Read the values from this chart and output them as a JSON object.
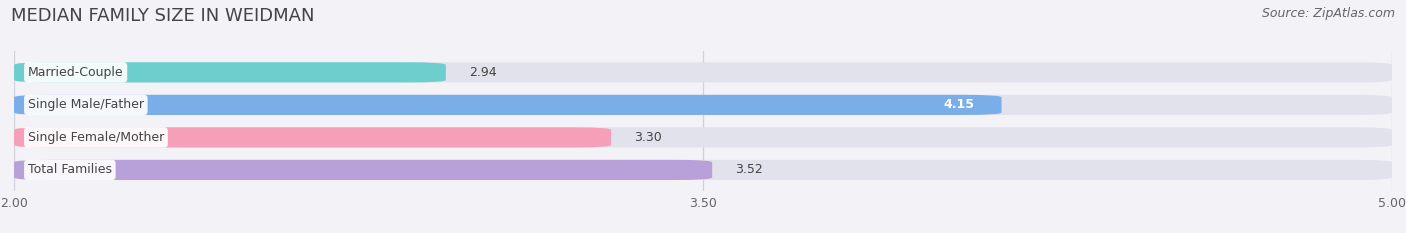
{
  "title": "MEDIAN FAMILY SIZE IN WEIDMAN",
  "source": "Source: ZipAtlas.com",
  "categories": [
    "Married-Couple",
    "Single Male/Father",
    "Single Female/Mother",
    "Total Families"
  ],
  "values": [
    2.94,
    4.15,
    3.3,
    3.52
  ],
  "bar_colors": [
    "#6dcece",
    "#7aaee8",
    "#f5a0b8",
    "#b8a0d8"
  ],
  "value_inside": [
    false,
    true,
    false,
    false
  ],
  "xlim": [
    2.0,
    5.0
  ],
  "xticks": [
    2.0,
    3.5,
    5.0
  ],
  "xtick_labels": [
    "2.00",
    "3.50",
    "5.00"
  ],
  "bar_height": 0.62,
  "background_color": "#f2f2f7",
  "bar_bg_color": "#e2e2ec",
  "title_fontsize": 13,
  "source_fontsize": 9,
  "label_fontsize": 9,
  "value_fontsize": 9,
  "tick_fontsize": 9
}
